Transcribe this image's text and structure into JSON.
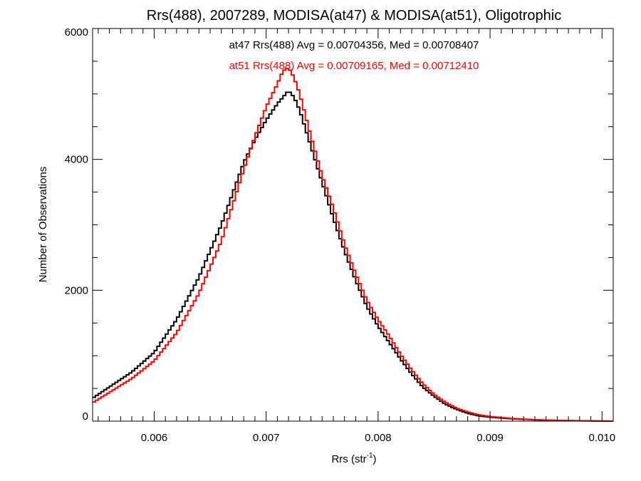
{
  "chart_data": {
    "type": "line",
    "title": "Rrs(488), 2007289, MODISA(at47) & MODISA(at51), Oligotrophic",
    "xlabel": "Rrs (str",
    "xlabel_sup": "-1",
    "xlabel_close": ")",
    "ylabel": "Number of Observations",
    "xlim": [
      0.00545,
      0.0101
    ],
    "ylim": [
      0,
      6000
    ],
    "x_ticks": [
      0.006,
      0.007,
      0.008,
      0.009,
      0.01
    ],
    "x_tick_labels": [
      "0.006",
      "0.007",
      "0.008",
      "0.009",
      "0.010"
    ],
    "y_ticks": [
      0,
      2000,
      4000,
      6000
    ],
    "y_tick_labels": [
      "0",
      "2000",
      "4000",
      "6000"
    ],
    "grid": false,
    "annotations": [
      {
        "text": "at47 Rrs(488) Avg = 0.00704356, Med = 0.00708407",
        "color": "#000000"
      },
      {
        "text": "at51 Rrs(488) Avg = 0.00709165, Med = 0.00712410",
        "color": "#ff0000"
      }
    ],
    "series": [
      {
        "name": "at47",
        "color": "#000000",
        "x": [
          0.00545,
          0.0058,
          0.006,
          0.0062,
          0.0064,
          0.0066,
          0.0068,
          0.0069,
          0.007,
          0.0071,
          0.00715,
          0.0072,
          0.00725,
          0.0073,
          0.0074,
          0.0075,
          0.0076,
          0.0077,
          0.0078,
          0.0079,
          0.008,
          0.0081,
          0.0082,
          0.0083,
          0.0084,
          0.0085,
          0.0086,
          0.0087,
          0.0088,
          0.0089,
          0.009,
          0.0092,
          0.0094,
          0.0096,
          0.0098,
          0.0101
        ],
        "y": [
          350,
          750,
          1050,
          1550,
          2200,
          3000,
          3950,
          4300,
          4600,
          4850,
          4950,
          5050,
          4950,
          4750,
          4200,
          3650,
          3100,
          2600,
          2150,
          1750,
          1450,
          1200,
          950,
          720,
          520,
          380,
          260,
          180,
          120,
          80,
          60,
          35,
          20,
          10,
          5,
          0
        ]
      },
      {
        "name": "at51",
        "color": "#ff0000",
        "x": [
          0.00545,
          0.0058,
          0.006,
          0.0062,
          0.0064,
          0.0066,
          0.0068,
          0.0069,
          0.007,
          0.0071,
          0.00715,
          0.0072,
          0.00725,
          0.0073,
          0.0074,
          0.0075,
          0.0076,
          0.0077,
          0.0078,
          0.0079,
          0.008,
          0.0081,
          0.0082,
          0.0083,
          0.0084,
          0.0085,
          0.0086,
          0.0087,
          0.0088,
          0.0089,
          0.009,
          0.0092,
          0.0094,
          0.0096,
          0.0098,
          0.0101
        ],
        "y": [
          280,
          650,
          920,
          1350,
          1950,
          2750,
          3850,
          4350,
          4800,
          5150,
          5350,
          5400,
          5250,
          5000,
          4350,
          3750,
          3250,
          2700,
          2250,
          1850,
          1550,
          1300,
          1020,
          780,
          570,
          410,
          290,
          200,
          140,
          95,
          70,
          40,
          22,
          12,
          6,
          0
        ]
      }
    ]
  }
}
